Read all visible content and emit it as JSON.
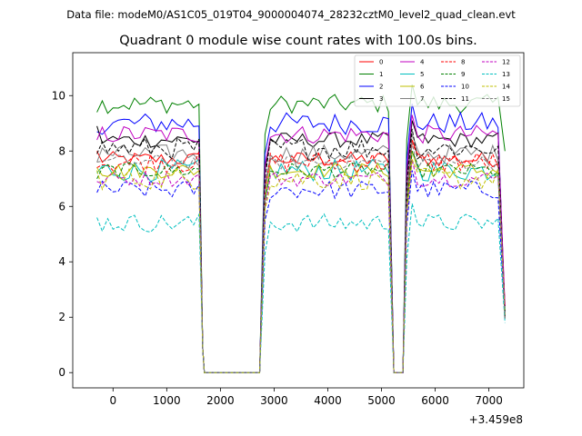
{
  "chart_data": {
    "type": "line",
    "suptitle": "Data file: modeM0/AS1C05_019T04_9000004074_28232cztM0_level2_quad_clean.evt",
    "title": "Quadrant 0 module wise count rates with 100.0s bins.",
    "xlabel": "",
    "ylabel": "",
    "x_offset_label": "+3.459e8",
    "xlim": [
      -750,
      7650
    ],
    "ylim": [
      -0.55,
      11.55
    ],
    "x_ticks": [
      0,
      1000,
      2000,
      3000,
      4000,
      5000,
      6000,
      7000
    ],
    "x_tick_labels": [
      "0",
      "1000",
      "2000",
      "3000",
      "4000",
      "5000",
      "6000",
      "7000"
    ],
    "y_ticks": [
      0,
      2,
      4,
      6,
      8,
      10
    ],
    "y_tick_labels": [
      "0",
      "2",
      "4",
      "6",
      "8",
      "10"
    ],
    "legend_position": "top-right",
    "segments": [
      {
        "x_start": -300,
        "x_end": 1600
      },
      {
        "x_start": 2830,
        "x_end": 5130
      },
      {
        "x_start": 5570,
        "x_end": 7220
      }
    ],
    "series": [
      {
        "name": "0",
        "color": "#ff0000",
        "dash": false,
        "level": 7.7,
        "start": 8.0
      },
      {
        "name": "1",
        "color": "#008000",
        "dash": false,
        "level": 9.7,
        "start": 9.4,
        "end_val": 8.0
      },
      {
        "name": "2",
        "color": "#0000ff",
        "dash": false,
        "level": 9.0,
        "start": 8.7
      },
      {
        "name": "3",
        "color": "#000000",
        "dash": false,
        "level": 8.4,
        "start": 8.9,
        "end_val": 2.2
      },
      {
        "name": "4",
        "color": "#c000c0",
        "dash": false,
        "level": 8.6,
        "start": 8.4
      },
      {
        "name": "5",
        "color": "#00bfbf",
        "dash": false,
        "level": 7.3,
        "start": 7.2
      },
      {
        "name": "6",
        "color": "#bfbf00",
        "dash": false,
        "level": 7.3,
        "start": 7.4
      },
      {
        "name": "7",
        "color": "#808080",
        "dash": false,
        "level": 7.9,
        "start": 7.6
      },
      {
        "name": "8",
        "color": "#ff0000",
        "dash": true,
        "level": 7.6,
        "start": 7.4
      },
      {
        "name": "9",
        "color": "#008000",
        "dash": true,
        "level": 7.3,
        "start": 7.0
      },
      {
        "name": "10",
        "color": "#0000ff",
        "dash": true,
        "level": 6.6,
        "start": 6.5
      },
      {
        "name": "11",
        "color": "#000000",
        "dash": true,
        "level": 8.1,
        "start": 7.9
      },
      {
        "name": "12",
        "color": "#c000c0",
        "dash": true,
        "level": 7.0,
        "start": 6.9
      },
      {
        "name": "13",
        "color": "#00bfbf",
        "dash": true,
        "level": 5.4,
        "start": 5.6,
        "end_val": 1.8
      },
      {
        "name": "14",
        "color": "#bfbf00",
        "dash": true,
        "level": 7.0,
        "start": 7.3
      },
      {
        "name": "15",
        "color": "#808080",
        "dash": true,
        "level": 7.6,
        "start": 7.6
      }
    ]
  }
}
